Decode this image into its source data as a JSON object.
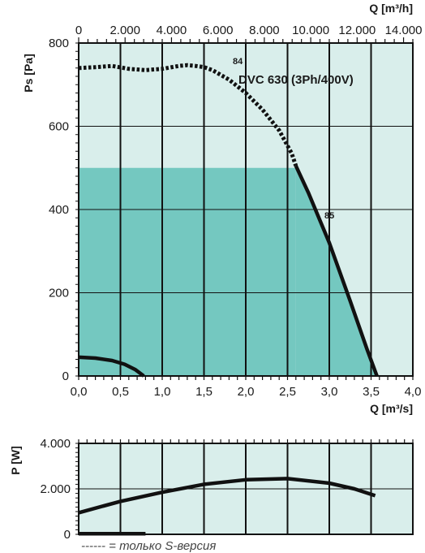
{
  "chart_data": [
    {
      "type": "line",
      "title": "DVC 630 (3Ph/400V)",
      "xlabel": "Q [m³/s]",
      "x2label": "Q [m³/h]",
      "ylabel": "Ps [Pa]",
      "xlim": [
        0,
        4
      ],
      "ylim": [
        0,
        800
      ],
      "x_ticks": [
        "0,0",
        "0,5",
        "1,0",
        "1,5",
        "2,0",
        "2,5",
        "3,0",
        "3,5",
        "4,0"
      ],
      "x2_ticks": [
        "0",
        "2.000",
        "4.000",
        "6.000",
        "8.000",
        "10.000",
        "12.000",
        "14.000"
      ],
      "y_ticks": [
        "0",
        "200",
        "400",
        "600",
        "800"
      ],
      "grid": true,
      "shaded_region": {
        "x_max": 2.6,
        "y_max": 500,
        "color": "#74c8c0"
      },
      "annotations": [
        {
          "text": "84",
          "x": 1.85,
          "y": 760
        },
        {
          "text": "85",
          "x": 2.95,
          "y": 380
        }
      ],
      "series": [
        {
          "style": "dashed",
          "x": [
            0,
            0.2,
            0.4,
            0.6,
            0.8,
            1.0,
            1.2,
            1.3,
            1.4,
            1.5,
            1.6,
            1.8,
            2.0,
            2.2,
            2.4,
            2.55,
            2.6
          ],
          "y": [
            740,
            742,
            745,
            738,
            735,
            738,
            745,
            747,
            745,
            742,
            735,
            712,
            680,
            640,
            590,
            535,
            505
          ]
        },
        {
          "style": "solid",
          "x": [
            2.6,
            2.75,
            3.0,
            3.25,
            3.45,
            3.57
          ],
          "y": [
            505,
            440,
            320,
            180,
            65,
            0
          ]
        },
        {
          "style": "solid",
          "x": [
            0,
            0.2,
            0.4,
            0.55,
            0.68,
            0.78
          ],
          "y": [
            45,
            43,
            37,
            28,
            15,
            0
          ]
        }
      ]
    },
    {
      "type": "line",
      "ylabel": "P [W]",
      "xlim": [
        0,
        4
      ],
      "ylim": [
        0,
        4000
      ],
      "y_ticks": [
        "0",
        "2.000",
        "4.000"
      ],
      "grid": true,
      "series": [
        {
          "style": "solid",
          "x": [
            0,
            0.5,
            1.0,
            1.5,
            2.0,
            2.5,
            3.0,
            3.3,
            3.55
          ],
          "y": [
            950,
            1450,
            1850,
            2200,
            2400,
            2450,
            2250,
            2000,
            1700
          ]
        },
        {
          "style": "solid",
          "x": [
            0,
            0.8
          ],
          "y": [
            30,
            30
          ]
        }
      ]
    }
  ],
  "legend": {
    "text": "------ = только S-версия"
  }
}
